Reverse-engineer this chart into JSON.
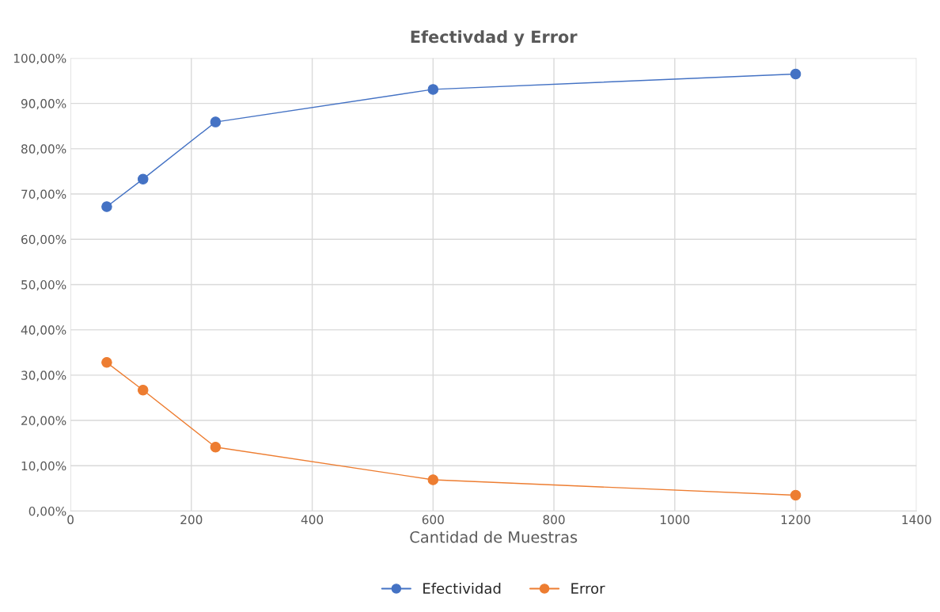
{
  "chart_data": {
    "type": "line",
    "title": "Efectivdad y Error",
    "xlabel": "Cantidad de Muestras",
    "x": [
      60,
      120,
      240,
      600,
      1200
    ],
    "series": [
      {
        "name": "Efectividad",
        "color": "#4472c4",
        "values": [
          67.2,
          73.3,
          85.9,
          93.1,
          96.5
        ]
      },
      {
        "name": "Error",
        "color": "#ed7d31",
        "values": [
          32.8,
          26.7,
          14.1,
          6.9,
          3.5
        ]
      }
    ],
    "xlim": [
      0,
      1400
    ],
    "xticks": [
      0,
      200,
      400,
      600,
      800,
      1000,
      1200,
      1400
    ],
    "ylim": [
      0,
      100
    ],
    "yticks": [
      {
        "value": 0,
        "label": "0,00%"
      },
      {
        "value": 10,
        "label": "10,00%"
      },
      {
        "value": 20,
        "label": "20,00%"
      },
      {
        "value": 30,
        "label": "30,00%"
      },
      {
        "value": 40,
        "label": "40,00%"
      },
      {
        "value": 50,
        "label": "50,00%"
      },
      {
        "value": 60,
        "label": "60,00%"
      },
      {
        "value": 70,
        "label": "70,00%"
      },
      {
        "value": 80,
        "label": "80,00%"
      },
      {
        "value": 90,
        "label": "90,00%"
      },
      {
        "value": 100,
        "label": "100,00%"
      }
    ],
    "grid": true,
    "legend": "bottom",
    "marker": "circle",
    "line_style": "solid"
  }
}
